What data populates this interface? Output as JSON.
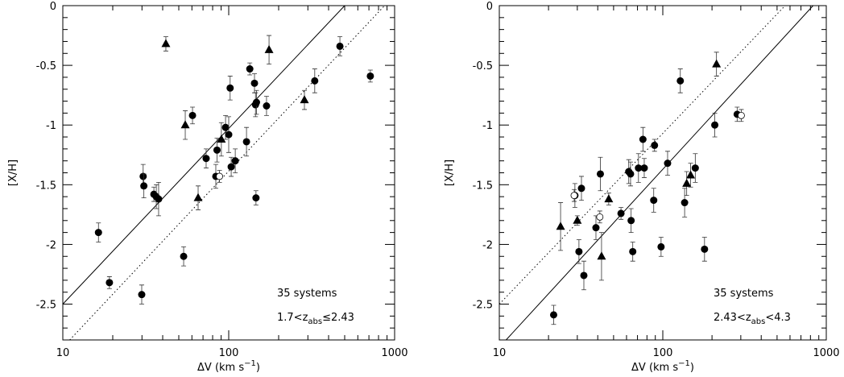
{
  "chart_data": [
    {
      "type": "scatter",
      "log_x": true,
      "xlabel": [
        "ΔV  (km  s",
        "−1",
        ")"
      ],
      "ylabel": "[X/H]",
      "xlim": [
        10,
        1000
      ],
      "ylim": [
        -2.8,
        0
      ],
      "xticks": [
        10,
        100,
        1000
      ],
      "xminor": [
        20,
        30,
        40,
        50,
        60,
        70,
        80,
        90,
        200,
        300,
        400,
        500,
        600,
        700,
        800,
        900
      ],
      "yticks": [
        0,
        -0.5,
        -1,
        -1.5,
        -2,
        -2.5
      ],
      "yminor": [
        -0.1,
        -0.2,
        -0.3,
        -0.4,
        -0.6,
        -0.7,
        -0.8,
        -0.9,
        -1.1,
        -1.2,
        -1.3,
        -1.4,
        -1.6,
        -1.7,
        -1.8,
        -1.9,
        -2.1,
        -2.2,
        -2.3,
        -2.4,
        -2.6,
        -2.7
      ],
      "annotations": [
        [
          "35  systems"
        ],
        [
          "1.7<z",
          "abs",
          "≤2.43"
        ]
      ],
      "lines": [
        {
          "style": "solid",
          "x": [
            10,
            500
          ],
          "y": [
            -2.5,
            0
          ]
        },
        {
          "style": "dotted",
          "x": [
            11,
            870
          ],
          "y": [
            -2.8,
            0
          ]
        }
      ],
      "series": [
        {
          "marker": "filled-circle",
          "x": [
            16.4,
            19.1,
            29.9,
            30.5,
            30.8,
            35.4,
            36.6,
            37.8,
            53.5,
            60.5,
            73.1,
            83.6,
            85,
            95.7,
            100,
            102,
            103.5,
            109.5,
            128,
            134,
            143,
            145,
            147,
            146,
            169,
            330,
            468,
            714
          ],
          "y": [
            -1.9,
            -2.32,
            -2.42,
            -1.43,
            -1.51,
            -1.58,
            -1.6,
            -1.62,
            -2.1,
            -0.92,
            -1.28,
            -1.43,
            -1.21,
            -1.02,
            -1.08,
            -0.69,
            -1.35,
            -1.3,
            -1.14,
            -0.53,
            -0.65,
            -0.83,
            -0.81,
            -1.61,
            -0.84,
            -0.63,
            -0.34,
            -0.59
          ],
          "err": [
            0.08,
            0.05,
            0.08,
            0.1,
            0.1,
            0.06,
            0.1,
            0.14,
            0.08,
            0.07,
            0.08,
            0.1,
            0.1,
            0.1,
            0.15,
            0.1,
            0.08,
            0.1,
            0.12,
            0.05,
            0.08,
            0.1,
            0.1,
            0.06,
            0.08,
            0.1,
            0.08,
            0.05
          ]
        },
        {
          "marker": "triangle",
          "x": [
            41.8,
            54.7,
            65.4,
            90.3,
            175,
            286
          ],
          "y": [
            -0.32,
            -1.0,
            -1.61,
            -1.12,
            -0.37,
            -0.79
          ],
          "err": [
            0.06,
            0.12,
            0.1,
            0.14,
            0.12,
            0.08
          ]
        },
        {
          "marker": "open-circle",
          "x": [
            88
          ],
          "y": [
            -1.43
          ],
          "err": [
            0.05
          ]
        }
      ]
    },
    {
      "type": "scatter",
      "log_x": true,
      "xlabel": [
        "ΔV  (km  s",
        "−1",
        ")"
      ],
      "ylabel": "[X/H]",
      "xlim": [
        10,
        1000
      ],
      "ylim": [
        -2.8,
        0
      ],
      "xticks": [
        10,
        100,
        1000
      ],
      "xminor": [
        20,
        30,
        40,
        50,
        60,
        70,
        80,
        90,
        200,
        300,
        400,
        500,
        600,
        700,
        800,
        900
      ],
      "yticks": [
        0,
        -0.5,
        -1,
        -1.5,
        -2,
        -2.5
      ],
      "yminor": [
        -0.1,
        -0.2,
        -0.3,
        -0.4,
        -0.6,
        -0.7,
        -0.8,
        -0.9,
        -1.1,
        -1.2,
        -1.3,
        -1.4,
        -1.6,
        -1.7,
        -1.8,
        -1.9,
        -2.1,
        -2.2,
        -2.3,
        -2.4,
        -2.6,
        -2.7
      ],
      "annotations": [
        [
          "35  systems"
        ],
        [
          "2.43<z",
          "abs",
          "<4.3"
        ]
      ],
      "lines": [
        {
          "style": "solid",
          "x": [
            11,
            830
          ],
          "y": [
            -2.8,
            0
          ]
        },
        {
          "style": "dotted",
          "x": [
            10,
            560
          ],
          "y": [
            -2.5,
            0
          ]
        }
      ],
      "series": [
        {
          "marker": "filled-circle",
          "x": [
            21.5,
            29,
            30.7,
            31.8,
            32.9,
            39,
            41.5,
            55.5,
            61.9,
            63.5,
            64,
            65.5,
            71,
            75.6,
            77,
            88,
            89,
            97.6,
            107,
            128,
            136,
            158,
            180,
            208,
            285
          ],
          "y": [
            -2.59,
            -1.59,
            -2.06,
            -1.53,
            -2.26,
            -1.86,
            -1.41,
            -1.74,
            -1.39,
            -1.41,
            -1.8,
            -2.06,
            -1.36,
            -1.12,
            -1.36,
            -1.63,
            -1.17,
            -2.02,
            -1.32,
            -0.63,
            -1.65,
            -1.36,
            -2.04,
            -1.0,
            -0.91
          ],
          "err": [
            0.08,
            0.1,
            0.1,
            0.1,
            0.12,
            0.1,
            0.14,
            0.05,
            0.1,
            0.1,
            0.1,
            0.08,
            0.12,
            0.1,
            0.08,
            0.1,
            0.05,
            0.08,
            0.1,
            0.1,
            0.12,
            0.12,
            0.1,
            0.1,
            0.06
          ]
        },
        {
          "marker": "triangle",
          "x": [
            23.7,
            30,
            42.2,
            46.7,
            140,
            148,
            213
          ],
          "y": [
            -1.85,
            -1.8,
            -2.1,
            -1.62,
            -1.49,
            -1.42,
            -0.49
          ],
          "err": [
            0.2,
            0.04,
            0.2,
            0.05,
            0.1,
            0.1,
            0.1
          ]
        },
        {
          "marker": "open-circle",
          "x": [
            28.7,
            41.2,
            302
          ],
          "y": [
            -1.59,
            -1.77,
            -0.92
          ],
          "err": [
            0.05,
            0.05,
            0.05
          ]
        }
      ]
    }
  ]
}
